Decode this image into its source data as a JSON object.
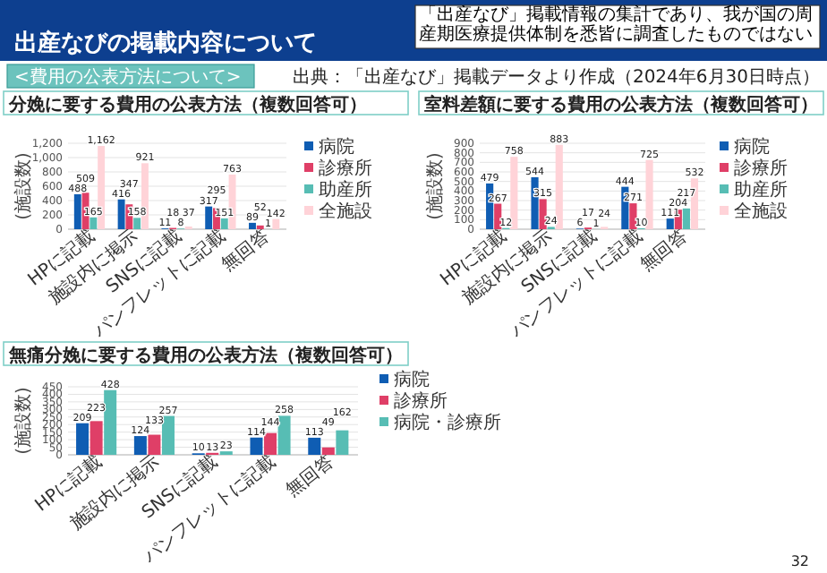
{
  "chart_data": [
    {
      "type": "bar",
      "title": "分娩に要する費用の公表方法（複数回答可）",
      "ylabel": "(施設数)",
      "categories": [
        "HPに記載",
        "施設内に掲示",
        "SNSに記載",
        "パンフレットに記載",
        "無回答"
      ],
      "series": [
        {
          "name": "病院",
          "color": "#0f5db3",
          "values": [
            488,
            416,
            11,
            317,
            89
          ]
        },
        {
          "name": "診療所",
          "color": "#df3f67",
          "values": [
            509,
            347,
            18,
            295,
            52
          ]
        },
        {
          "name": "助産所",
          "color": "#57bdb4",
          "values": [
            165,
            158,
            8,
            151,
            1
          ]
        },
        {
          "name": "全施設",
          "color": "#ffd3d8",
          "values": [
            1162,
            921,
            37,
            763,
            142
          ],
          "value_labels": [
            "1,162",
            "921",
            "37",
            "763",
            "142"
          ]
        }
      ],
      "ylim": [
        0,
        1200
      ],
      "yticks": [
        0,
        200,
        400,
        600,
        800,
        {
          "value": 1000,
          "label": "1,000"
        },
        {
          "value": 1200,
          "label": "1,200"
        }
      ],
      "grid": "y",
      "legend": "right",
      "data_labels": true,
      "annotations": [
        "出産なびの掲載内容について",
        "「出産なび」掲載情報の集計であり、我が国の周産期医療提供体制を悉皆に調査したものではない",
        "<費用の公表方法について>",
        "出典：「出産なび」掲載データより作成（2024年6月30日時点）",
        "32"
      ]
    },
    {
      "type": "bar",
      "title": "室料差額に要する費用の公表方法（複数回答可）",
      "ylabel": "(施設数)",
      "categories": [
        "HPに記載",
        "施設内に掲示",
        "SNSに記載",
        "パンフレットに記載",
        "無回答"
      ],
      "series": [
        {
          "name": "病院",
          "color": "#0f5db3",
          "values": [
            479,
            544,
            6,
            444,
            111
          ]
        },
        {
          "name": "診療所",
          "color": "#df3f67",
          "values": [
            267,
            315,
            17,
            271,
            204
          ]
        },
        {
          "name": "助産所",
          "color": "#57bdb4",
          "values": [
            12,
            24,
            1,
            10,
            217
          ]
        },
        {
          "name": "全施設",
          "color": "#ffd3d8",
          "values": [
            758,
            883,
            24,
            725,
            532
          ]
        }
      ],
      "ylim": [
        0,
        900
      ],
      "yticks": [
        0,
        100,
        200,
        300,
        400,
        500,
        600,
        700,
        800,
        900
      ],
      "grid": "y",
      "legend": "right",
      "data_labels": true
    },
    {
      "type": "bar",
      "title": "無痛分娩に要する費用の公表方法（複数回答可）",
      "ylabel": "(施設数)",
      "categories": [
        "HPに記載",
        "施設内に掲示",
        "SNSに記載",
        "パンフレットに記載",
        "無回答"
      ],
      "series": [
        {
          "name": "病院",
          "color": "#0f5db3",
          "values": [
            209,
            124,
            10,
            114,
            113
          ]
        },
        {
          "name": "診療所",
          "color": "#df3f67",
          "values": [
            223,
            133,
            13,
            144,
            49
          ]
        },
        {
          "name": "病院・診療所",
          "color": "#57bdb4",
          "values": [
            428,
            257,
            23,
            258,
            162
          ]
        }
      ],
      "ylim": [
        0,
        450
      ],
      "yticks": [
        0,
        50,
        100,
        150,
        200,
        250,
        300,
        350,
        400,
        450
      ],
      "grid": "y",
      "legend": "right",
      "data_labels": true
    }
  ]
}
